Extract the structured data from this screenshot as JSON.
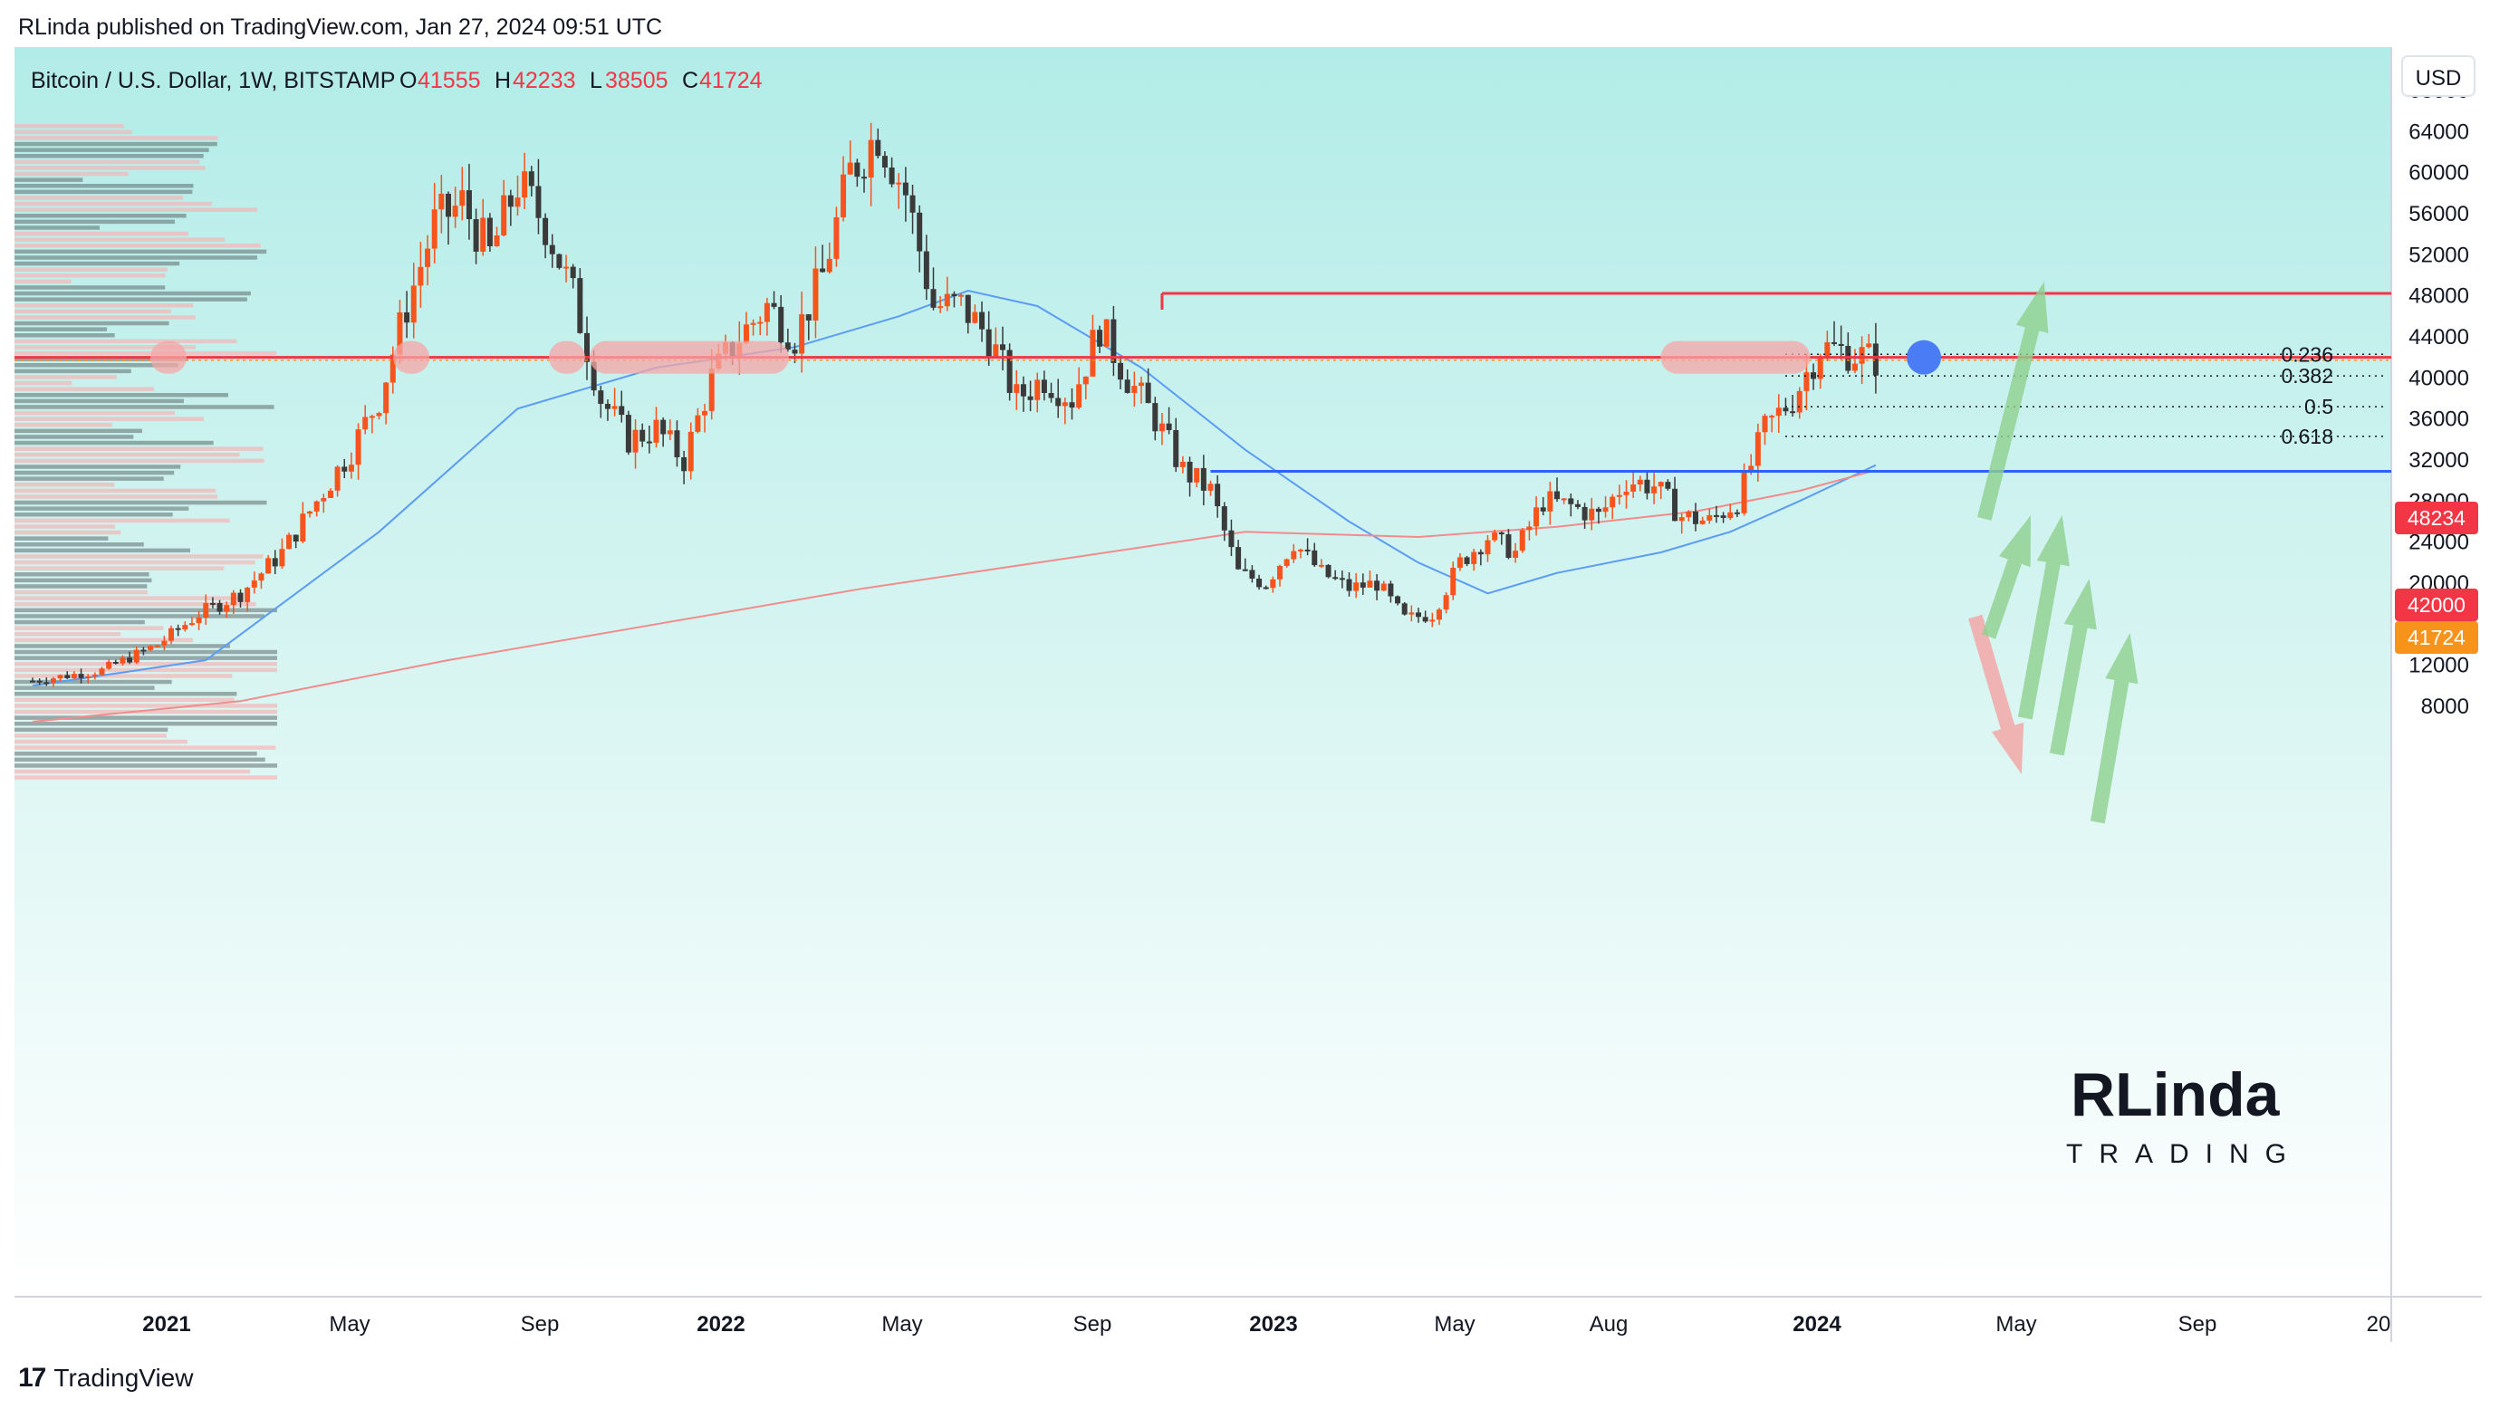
{
  "header": {
    "published": "RLinda published on TradingView.com, Jan 27, 2024 09:51 UTC"
  },
  "legend": {
    "symbol": "Bitcoin / U.S. Dollar, 1W, BITSTAMP",
    "open_label": "O",
    "open": "41555",
    "high_label": "H",
    "high": "42233",
    "low_label": "L",
    "low": "38505",
    "close_label": "C",
    "close": "41724"
  },
  "currency_button": "USD",
  "colors": {
    "up": "#f7531c",
    "down": "#3a3a3a",
    "level": "#f23645",
    "support": "#2962ff",
    "ma_fast": "#5b9cf6",
    "ma_slow": "#f28c8c",
    "bg_top": "#b2ece8",
    "bg_bottom": "#ffffff",
    "arrow_up": "#8fd18f",
    "arrow_down": "#f4a3a3",
    "price_tag": "#f7931a"
  },
  "price_tags": {
    "resistance": "48234",
    "current": "41724",
    "level": "42000"
  },
  "fib_labels": [
    "0.236",
    "0.382",
    "0.5",
    "0.618"
  ],
  "logo": {
    "name": "RLinda",
    "sub": "TRADING"
  },
  "footer": {
    "brand": "TradingView",
    "icon": "tradingview-logo-icon"
  },
  "chart_data": {
    "type": "candlestick",
    "timeframe": "1W",
    "y_ticks": [
      68000,
      64000,
      60000,
      56000,
      52000,
      48000,
      44000,
      40000,
      36000,
      32000,
      28000,
      24000,
      20000,
      16000,
      12000,
      8000
    ],
    "x_ticks": [
      "2021",
      "May",
      "Sep",
      "2022",
      "May",
      "Sep",
      "2023",
      "May",
      "Aug",
      "2024",
      "May",
      "Sep",
      "20"
    ],
    "ylim": [
      4000,
      70000
    ],
    "levels": {
      "resistance": 48234,
      "key_level": 42000,
      "support": 30900,
      "fib_0_236": 42300,
      "fib_0_382": 40200,
      "fib_0_5": 37200,
      "fib_0_618": 34300
    },
    "anchors": [
      [
        0,
        10500
      ],
      [
        10,
        11500
      ],
      [
        18,
        14000
      ],
      [
        24,
        17000
      ],
      [
        30,
        19000
      ],
      [
        36,
        23000
      ],
      [
        42,
        29000
      ],
      [
        46,
        33000
      ],
      [
        50,
        38000
      ],
      [
        54,
        47000
      ],
      [
        58,
        55000
      ],
      [
        62,
        57000
      ],
      [
        66,
        52000
      ],
      [
        70,
        59000
      ],
      [
        74,
        55000
      ],
      [
        78,
        48000
      ],
      [
        82,
        38000
      ],
      [
        86,
        34000
      ],
      [
        90,
        35000
      ],
      [
        94,
        32000
      ],
      [
        98,
        40000
      ],
      [
        102,
        44000
      ],
      [
        106,
        47000
      ],
      [
        110,
        44000
      ],
      [
        114,
        50000
      ],
      [
        118,
        60000
      ],
      [
        122,
        64000
      ],
      [
        126,
        58000
      ],
      [
        130,
        47000
      ],
      [
        134,
        47000
      ],
      [
        138,
        44000
      ],
      [
        142,
        38000
      ],
      [
        146,
        40000
      ],
      [
        150,
        38000
      ],
      [
        154,
        45000
      ],
      [
        158,
        40000
      ],
      [
        162,
        36000
      ],
      [
        166,
        31000
      ],
      [
        170,
        29000
      ],
      [
        174,
        21000
      ],
      [
        178,
        20000
      ],
      [
        182,
        24000
      ],
      [
        186,
        21000
      ],
      [
        190,
        19500
      ],
      [
        194,
        20000
      ],
      [
        198,
        16500
      ],
      [
        202,
        17000
      ],
      [
        206,
        22000
      ],
      [
        210,
        24500
      ],
      [
        214,
        23000
      ],
      [
        218,
        28000
      ],
      [
        222,
        27500
      ],
      [
        226,
        26500
      ],
      [
        230,
        30000
      ],
      [
        234,
        29500
      ],
      [
        238,
        26500
      ],
      [
        242,
        26000
      ],
      [
        246,
        28000
      ],
      [
        250,
        35000
      ],
      [
        254,
        38000
      ],
      [
        258,
        43000
      ],
      [
        262,
        42500
      ],
      [
        266,
        41724
      ]
    ],
    "ma_fast": [
      [
        0,
        10000
      ],
      [
        25,
        12500
      ],
      [
        50,
        25000
      ],
      [
        70,
        37000
      ],
      [
        90,
        41000
      ],
      [
        110,
        43000
      ],
      [
        125,
        46000
      ],
      [
        135,
        48500
      ],
      [
        145,
        47000
      ],
      [
        160,
        41000
      ],
      [
        175,
        33000
      ],
      [
        190,
        26000
      ],
      [
        200,
        22000
      ],
      [
        210,
        19000
      ],
      [
        220,
        21000
      ],
      [
        235,
        23000
      ],
      [
        245,
        25000
      ],
      [
        255,
        28000
      ],
      [
        266,
        31500
      ]
    ],
    "ma_slow": [
      [
        0,
        6500
      ],
      [
        30,
        8500
      ],
      [
        60,
        12500
      ],
      [
        90,
        16000
      ],
      [
        120,
        19500
      ],
      [
        150,
        22500
      ],
      [
        175,
        25000
      ],
      [
        200,
        24500
      ],
      [
        220,
        25500
      ],
      [
        240,
        27000
      ],
      [
        255,
        29000
      ],
      [
        266,
        31000
      ]
    ]
  }
}
